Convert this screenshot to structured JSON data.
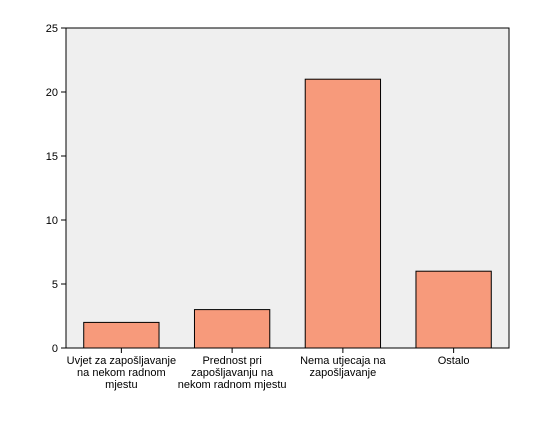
{
  "chart_data": {
    "type": "bar",
    "categories": [
      [
        "Uvjet za zapošljavanje",
        "na nekom radnom",
        "mjestu"
      ],
      [
        "Prednost pri",
        "zapošljavanju na",
        "nekom radnom mjestu"
      ],
      [
        "Nema utjecaja na",
        "zapošljavanje"
      ],
      [
        "Ostalo"
      ]
    ],
    "values": [
      2,
      3,
      21,
      6
    ],
    "ylim": [
      0,
      25
    ],
    "yticks": [
      "0",
      "5",
      "10",
      "15",
      "20",
      "25"
    ],
    "grid": false,
    "legend": "none",
    "colors": {
      "bar_fill": "#F79A7B",
      "bar_stroke": "#000000",
      "plot_background": "#EFEFEF",
      "axis": "#000000"
    }
  }
}
